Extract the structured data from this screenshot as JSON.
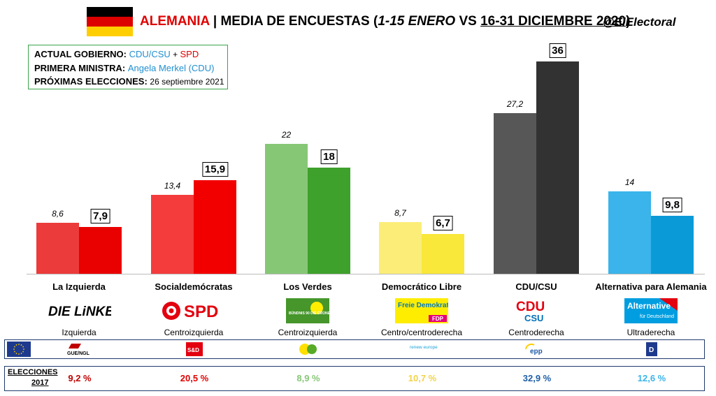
{
  "header": {
    "country": "ALEMANIA",
    "separator": "| MEDIA DE ENCUESTAS (",
    "range_new": "1-15 ENERO",
    "vs": " VS ",
    "range_old": "16-31 DICIEMBRE 2020",
    "close": ")",
    "handle": "@ElElectoral"
  },
  "info": {
    "gov_label": "ACTUAL GOBIERNO:",
    "gov_a": "CDU/CSU",
    "gov_plus": " + ",
    "gov_b": "SPD",
    "pm_label": "PRIMERA MINISTRA:",
    "pm_value": "Angela Merkel (CDU)",
    "next_label": "PRÓXIMAS ELECCIONES:",
    "next_value": "26 septiembre 2021"
  },
  "chart_data": {
    "type": "bar",
    "categories": [
      "La Izquierda",
      "Socialdemócratas",
      "Los Verdes",
      "Democrático Libre",
      "CDU/CSU",
      "Alternativa para Alemania"
    ],
    "series": [
      {
        "values": [
          8.6,
          13.4,
          22,
          8.7,
          27.2,
          14
        ]
      },
      {
        "values": [
          7.9,
          15.9,
          18,
          6.7,
          36,
          9.8
        ]
      }
    ],
    "value_labels_prev": [
      "8,6",
      "13,4",
      "22",
      "8,7",
      "27,2",
      "14"
    ],
    "value_labels_curr": [
      "7,9",
      "15,9",
      "18",
      "6,7",
      "36",
      "9,8"
    ],
    "ylim": [
      0,
      40
    ],
    "colors_prev": [
      "#ec3b3b",
      "#f43c3c",
      "#86c776",
      "#fbed78",
      "#575757",
      "#3ab4ea"
    ],
    "colors_curr": [
      "#e90000",
      "#f20000",
      "#3ea12b",
      "#f9e73a",
      "#323232",
      "#0a9ad8"
    ]
  },
  "parties": [
    {
      "name": "La Izquierda",
      "logo_text": "DIE LiNKE.",
      "ideology": "Izquierda",
      "eu_group": "GUE/NGL",
      "result_2017": "9,2 %",
      "result_color": "#c00000"
    },
    {
      "name": "Socialdemócratas",
      "logo_text": "SPD",
      "ideology": "Centroizquierda",
      "eu_group": "S&D",
      "result_2017": "20,5 %",
      "result_color": "#e00000"
    },
    {
      "name": "Los Verdes",
      "logo_text": "BÜNDNIS 90 DIE GRÜNEN",
      "ideology": "Centroizquierda",
      "eu_group": "",
      "result_2017": "8,9 %",
      "result_color": "#86c776"
    },
    {
      "name": "Democrático Libre",
      "logo_text": "Freie Demokraten",
      "logo_sub": "FDP",
      "ideology": "Centro/centroderecha",
      "eu_group": "renew europe.",
      "result_2017": "10,7 %",
      "result_color": "#f3d348"
    },
    {
      "name": "CDU/CSU",
      "logo_text": "CDU",
      "logo_sub": "CSU",
      "ideology": "Centroderecha",
      "eu_group": "epp",
      "result_2017": "32,9 %",
      "result_color": "#1f5fa8"
    },
    {
      "name": "Alternativa para Alemania",
      "logo_text": "Alternative",
      "logo_sub": "für Deutschland",
      "ideology": "Ultraderecha",
      "eu_group": "",
      "result_2017": "12,6 %",
      "result_color": "#3ab4ea"
    }
  ],
  "elections": {
    "label_line1": "ELECCIONES",
    "label_line2": "2017"
  },
  "colors": {
    "flag_black": "#000000",
    "flag_red": "#dd0000",
    "flag_gold": "#ffce00",
    "eu_blue": "#1e3a8e"
  }
}
